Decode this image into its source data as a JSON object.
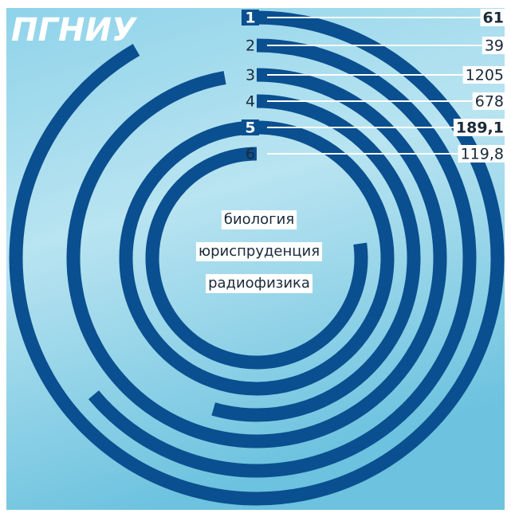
{
  "title": "ПГНИУ",
  "rows": [
    {
      "rank": "1",
      "value": "61"
    },
    {
      "rank": "2",
      "value": "39"
    },
    {
      "rank": "3",
      "value": "1205"
    },
    {
      "rank": "4",
      "value": "678"
    },
    {
      "rank": "5",
      "value": "189,1"
    },
    {
      "rank": "6",
      "value": "119,8"
    }
  ],
  "center_words": [
    "биология",
    "юриспруденция",
    "радиофизика"
  ]
}
